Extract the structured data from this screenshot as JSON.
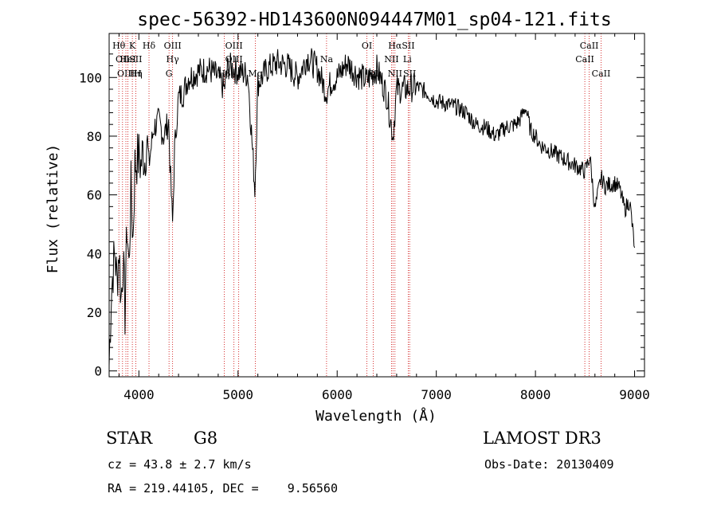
{
  "chart_data": {
    "type": "line",
    "title": "spec-56392-HD143600N094447M01_sp04-121.fits",
    "xlabel": "Wavelength (Å)",
    "ylabel": "Flux (relative)",
    "xlim": [
      3700,
      9100
    ],
    "ylim": [
      -2,
      115
    ],
    "xticks": [
      4000,
      5000,
      6000,
      7000,
      8000,
      9000
    ],
    "yticks": [
      0,
      20,
      40,
      60,
      80,
      100
    ],
    "grid": false,
    "series": [
      {
        "x": [
          3700,
          3720,
          3740,
          3760,
          3780,
          3800,
          3820,
          3840,
          3860,
          3880,
          3900,
          3920,
          3940,
          3960,
          3980,
          4000,
          4020,
          4040,
          4060,
          4080,
          4100,
          4150,
          4200,
          4250,
          4300,
          4320,
          4340,
          4360,
          4380,
          4400,
          4450,
          4500,
          4600,
          4700,
          4800,
          4861,
          4900,
          5000,
          5100,
          5170,
          5200,
          5300,
          5400,
          5500,
          5600,
          5700,
          5800,
          5890,
          5950,
          6000,
          6100,
          6200,
          6300,
          6400,
          6500,
          6563,
          6600,
          6700,
          6800,
          6900,
          7000,
          7100,
          7200,
          7300,
          7400,
          7500,
          7600,
          7700,
          7800,
          7850,
          7900,
          7950,
          8000,
          8050,
          8100,
          8200,
          8300,
          8400,
          8500,
          8550,
          8600,
          8662,
          8700,
          8800,
          8850,
          8900,
          8950,
          9000
        ],
        "y": [
          2,
          25,
          35,
          40,
          30,
          42,
          24,
          38,
          20,
          50,
          35,
          62,
          45,
          70,
          72,
          73,
          70,
          75,
          72,
          80,
          70,
          83,
          85,
          80,
          85,
          65,
          50,
          75,
          85,
          93,
          95,
          100,
          102,
          103,
          100,
          96,
          104,
          102,
          101,
          62,
          98,
          103,
          105,
          104,
          100,
          107,
          103,
          95,
          99,
          100,
          105,
          101,
          99,
          103,
          94,
          80,
          96,
          96,
          97,
          95,
          92,
          91,
          90,
          88,
          84,
          83,
          80,
          83,
          84,
          86,
          90,
          82,
          80,
          77,
          76,
          74,
          72,
          70,
          68,
          73,
          55,
          66,
          63,
          64,
          62,
          55,
          58,
          42
        ]
      }
    ],
    "line_labels": [
      {
        "wl": 3798,
        "row": 1,
        "text": "Hθ"
      },
      {
        "wl": 3835,
        "row": 2,
        "text": "OII"
      },
      {
        "wl": 3869,
        "row": 3,
        "text": "OIII"
      },
      {
        "wl": 3889,
        "row": 2,
        "text": "HeI"
      },
      {
        "wl": 3934,
        "row": 1,
        "text": "K"
      },
      {
        "wl": 3970,
        "row": 3,
        "text": "Hη"
      },
      {
        "wl": 3968,
        "row": 2,
        "text": "SII"
      },
      {
        "wl": 3990,
        "row": 3,
        "text": "H"
      },
      {
        "wl": 4102,
        "row": 1,
        "text": "Hδ"
      },
      {
        "wl": 4340,
        "row": 1,
        "text": "OIII"
      },
      {
        "wl": 4340,
        "row": 2,
        "text": "Hγ"
      },
      {
        "wl": 4304,
        "row": 3,
        "text": "G"
      },
      {
        "wl": 4959,
        "row": 1,
        "text": "OIII"
      },
      {
        "wl": 4959,
        "row": 2,
        "text": "OIII"
      },
      {
        "wl": 4861,
        "row": 3,
        "text": "Hβ"
      },
      {
        "wl": 5175,
        "row": 3,
        "text": "Mg"
      },
      {
        "wl": 5893,
        "row": 2,
        "text": "Na"
      },
      {
        "wl": 6300,
        "row": 1,
        "text": "OI"
      },
      {
        "wl": 6363,
        "row": 3,
        "text": "OI"
      },
      {
        "wl": 6583,
        "row": 1,
        "text": "Hα"
      },
      {
        "wl": 6548,
        "row": 2,
        "text": "NII"
      },
      {
        "wl": 6583,
        "row": 3,
        "text": "NII"
      },
      {
        "wl": 6717,
        "row": 1,
        "text": "SII"
      },
      {
        "wl": 6708,
        "row": 2,
        "text": "Li"
      },
      {
        "wl": 6731,
        "row": 3,
        "text": "SII"
      },
      {
        "wl": 8542,
        "row": 1,
        "text": "CaII"
      },
      {
        "wl": 8498,
        "row": 2,
        "text": "CaII"
      },
      {
        "wl": 8662,
        "row": 3,
        "text": "CaII"
      }
    ],
    "line_markers": [
      3798,
      3835,
      3869,
      3889,
      3934,
      3970,
      4102,
      4304,
      4340,
      4861,
      4959,
      5007,
      5175,
      5893,
      6300,
      6363,
      6548,
      6563,
      6583,
      6717,
      6731,
      8498,
      8542,
      8662
    ]
  },
  "info": {
    "obj_class": "STAR",
    "subclass": "G8",
    "survey": "LAMOST DR3",
    "cz": "cz = 43.8 ± 2.7 km/s",
    "obs_date": "Obs-Date: 20130409",
    "coords": "RA = 219.44105, DEC =    9.56560"
  }
}
